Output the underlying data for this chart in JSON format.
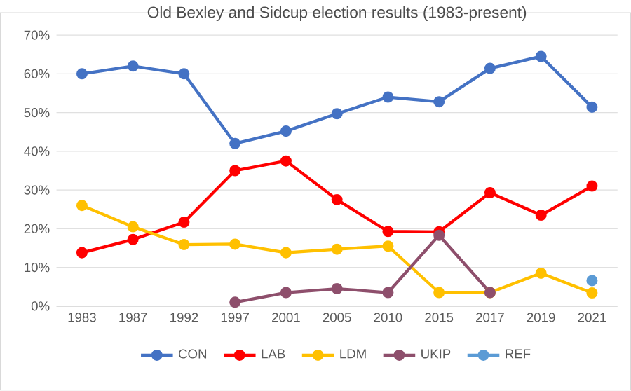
{
  "chart_data": {
    "type": "line",
    "title": "Old Bexley and Sidcup election results (1983-present)",
    "categories": [
      "1983",
      "1987",
      "1992",
      "1997",
      "2001",
      "2005",
      "2010",
      "2015",
      "2017",
      "2019",
      "2021"
    ],
    "series": [
      {
        "name": "CON",
        "color": "#4472c4",
        "values": [
          60,
          62,
          60,
          42,
          45.2,
          49.7,
          54,
          52.8,
          61.4,
          64.5,
          51.4
        ]
      },
      {
        "name": "LAB",
        "color": "#ff0000",
        "values": [
          13.8,
          17.2,
          21.7,
          35,
          37.5,
          27.5,
          19.3,
          19.2,
          29.3,
          23.5,
          31
        ]
      },
      {
        "name": "LDM",
        "color": "#ffc000",
        "values": [
          26,
          20.5,
          15.9,
          16,
          13.8,
          14.7,
          15.5,
          3.5,
          3.5,
          8.5,
          3.4
        ]
      },
      {
        "name": "UKIP",
        "color": "#8e4f6c",
        "values": [
          null,
          null,
          null,
          1,
          3.5,
          4.5,
          3.5,
          18.3,
          3.5,
          null,
          null
        ]
      },
      {
        "name": "REF",
        "color": "#5b9bd5",
        "values": [
          null,
          null,
          null,
          null,
          null,
          null,
          null,
          null,
          null,
          null,
          6.6
        ]
      }
    ],
    "ylim": [
      0,
      70
    ],
    "yticks": [
      {
        "value": 0,
        "label": "0%"
      },
      {
        "value": 10,
        "label": "10%"
      },
      {
        "value": 20,
        "label": "20%"
      },
      {
        "value": 30,
        "label": "30%"
      },
      {
        "value": 40,
        "label": "40%"
      },
      {
        "value": 50,
        "label": "50%"
      },
      {
        "value": 60,
        "label": "60%"
      },
      {
        "value": 70,
        "label": "70%"
      }
    ],
    "grid": "y",
    "legend": "bottom",
    "marker": "circle",
    "line_style": "solid"
  }
}
